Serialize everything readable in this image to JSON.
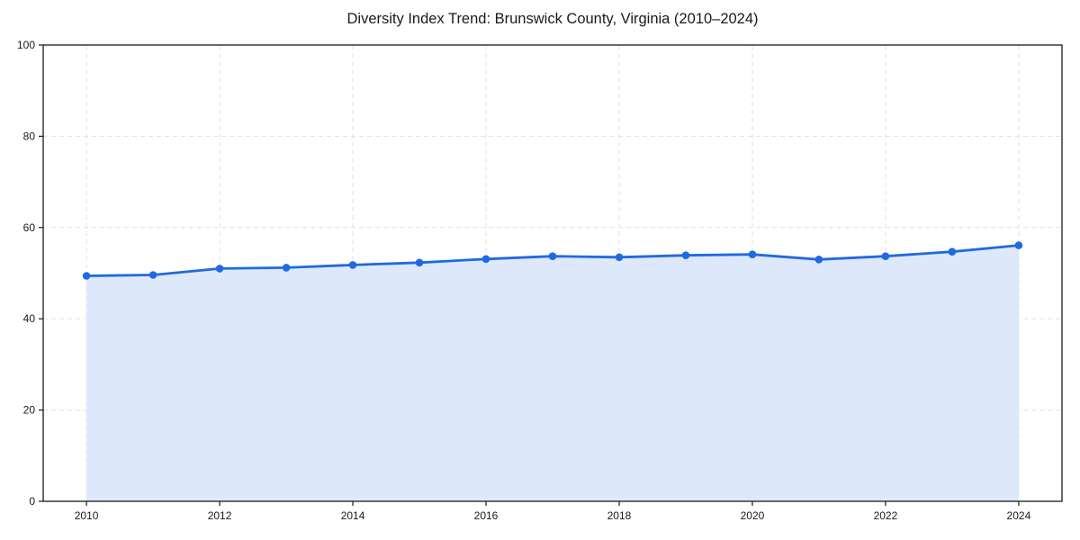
{
  "chart_data": {
    "type": "area",
    "title": "Diversity Index Trend: Brunswick County, Virginia (2010–2024)",
    "series_name": "Diversity Index",
    "x": [
      2010,
      2011,
      2012,
      2013,
      2014,
      2015,
      2016,
      2017,
      2018,
      2019,
      2020,
      2021,
      2022,
      2023,
      2024
    ],
    "values": [
      49.4,
      49.6,
      51.0,
      51.2,
      51.8,
      52.3,
      53.1,
      53.7,
      53.5,
      53.9,
      54.1,
      53.0,
      53.7,
      54.7,
      56.1
    ],
    "xlabel": "",
    "ylabel": "",
    "xlim": [
      2009.35,
      2024.65
    ],
    "ylim": [
      0,
      100
    ],
    "xticks": [
      2010,
      2012,
      2014,
      2016,
      2018,
      2020,
      2022,
      2024
    ],
    "xtick_labels": [
      "2010",
      "2012",
      "2014",
      "2016",
      "2018",
      "2020",
      "2022",
      "2024"
    ],
    "yticks": [
      0,
      20,
      40,
      60,
      80,
      100
    ],
    "ytick_labels": [
      "0",
      "20",
      "40",
      "60",
      "80",
      "100"
    ],
    "grid": true,
    "grid_style": "dashed",
    "legend_position": "none",
    "marker": "circle"
  },
  "colors": {
    "line": "#2169e0",
    "marker": "#2169e0",
    "fill": "#dde9fb",
    "grid": "#e0e0e0",
    "axis": "#1a1a1a",
    "text": "#1a1a1a",
    "background": "#ffffff"
  }
}
